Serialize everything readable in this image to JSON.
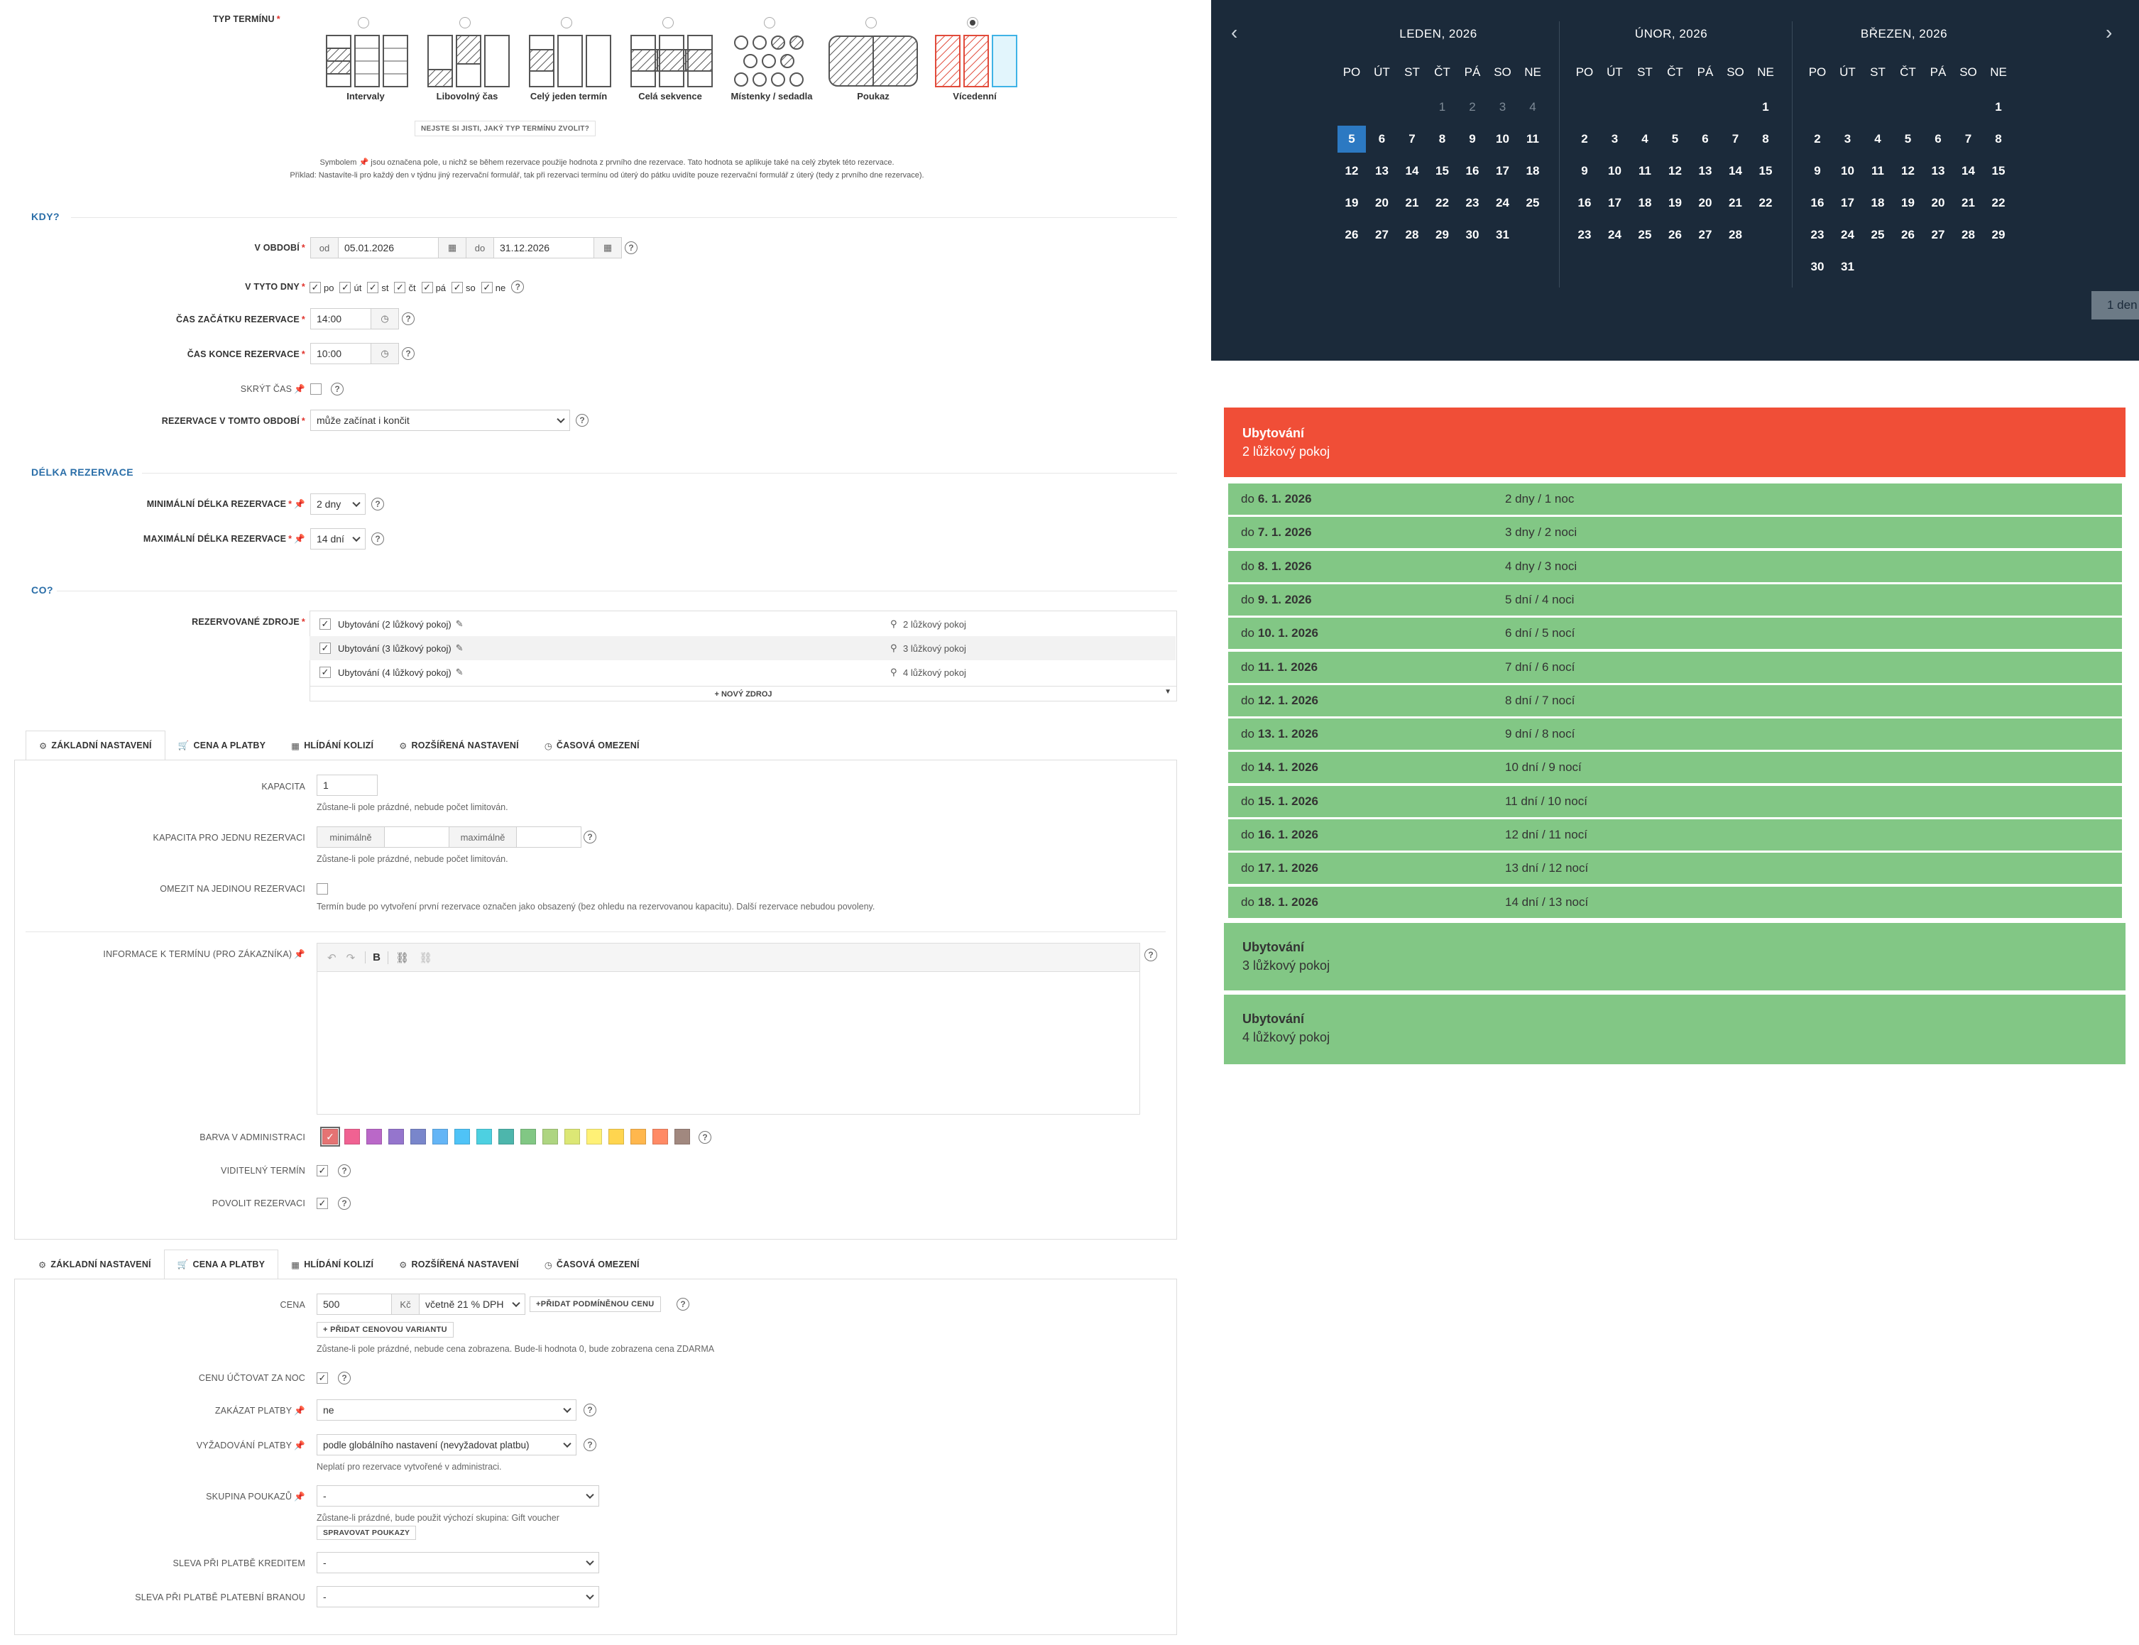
{
  "term_type": {
    "label": "TYP TERMÍNU",
    "options": [
      "Intervaly",
      "Libovolný čas",
      "Celý jeden termín",
      "Celá sekvence",
      "Místenky / sedadla",
      "Poukaz",
      "Vícedenní"
    ],
    "selected": "Vícedenní",
    "unsure_button": "NEJSTE SI JISTI, JAKÝ TYP TERMÍNU ZVOLIT?",
    "note_line1": "Symbolem 📌 jsou označena pole, u nichž se během rezervace použije hodnota z prvního dne rezervace. Tato hodnota se aplikuje také na celý zbytek této rezervace.",
    "note_line2": "Příklad: Nastavíte-li pro každý den v týdnu jiný rezervační formulář, tak při rezervaci termínu od úterý do pátku uvidíte pouze rezervační formulář z úterý (tedy z prvního dne rezervace)."
  },
  "kdy": {
    "section": "KDY?",
    "period_label": "V OBDOBÍ",
    "from_prefix": "od",
    "from_value": "05.01.2026",
    "to_prefix": "do",
    "to_value": "31.12.2026",
    "days_label": "V TYTO DNY",
    "days": [
      "po",
      "út",
      "st",
      "čt",
      "pá",
      "so",
      "ne"
    ],
    "start_label": "ČAS ZAČÁTKU REZERVACE",
    "start_value": "14:00",
    "end_label": "ČAS KONCE REZERVACE",
    "end_value": "10:00",
    "hide_label": "SKRÝT ČAS",
    "period_mode_label": "REZERVACE V TOMTO OBDOBÍ",
    "period_mode_value": "může začínat i končit"
  },
  "delka": {
    "section": "DÉLKA REZERVACE",
    "min_label": "MINIMÁLNÍ DÉLKA REZERVACE",
    "min_value": "2 dny",
    "max_label": "MAXIMÁLNÍ DÉLKA REZERVACE",
    "max_value": "14 dní"
  },
  "co": {
    "section": "CO?",
    "resources_label": "REZERVOVANÉ ZDROJE",
    "resources": [
      {
        "name": "Ubytování (2 lůžkový pokoj)",
        "location": "2 lůžkový pokoj"
      },
      {
        "name": "Ubytování (3 lůžkový pokoj)",
        "location": "3 lůžkový pokoj"
      },
      {
        "name": "Ubytování (4 lůžkový pokoj)",
        "location": "4 lůžkový pokoj"
      }
    ],
    "new_resource": "+ NOVÝ ZDROJ"
  },
  "tabs": [
    "ZÁKLADNÍ NASTAVENÍ",
    "CENA A PLATBY",
    "HLÍDÁNÍ KOLIZÍ",
    "ROZŠÍŘENÁ NASTAVENÍ",
    "ČASOVÁ OMEZENÍ"
  ],
  "basic": {
    "capacity_label": "KAPACITA",
    "capacity_value": "1",
    "capacity_hint": "Zůstane-li pole prázdné, nebude počet limitován.",
    "per_res_label": "KAPACITA PRO JEDNU REZERVACI",
    "min_placeholder": "minimálně",
    "max_placeholder": "maximálně",
    "per_res_hint": "Zůstane-li pole prázdné, nebude počet limitován.",
    "limit_label": "OMEZIT NA JEDINOU REZERVACI",
    "limit_hint": "Termín bude po vytvoření první rezervace označen jako obsazený (bez ohledu na rezervovanou kapacitu). Další rezervace nebudou povoleny.",
    "info_label": "INFORMACE K TERMÍNU (PRO ZÁKAZNÍKA)",
    "color_label": "BARVA V ADMINISTRACI",
    "colors": [
      "#e57373",
      "#f06292",
      "#ba68c8",
      "#9575cd",
      "#7986cb",
      "#64b5f6",
      "#4fc3f7",
      "#4dd0e1",
      "#4db6ac",
      "#81c784",
      "#aed581",
      "#dce775",
      "#fff176",
      "#ffd54f",
      "#ffb74d",
      "#ff8a65",
      "#a1887f"
    ],
    "visible_label": "VIDITELNÝ TERMÍN",
    "allow_label": "POVOLIT REZERVACI"
  },
  "pricing": {
    "price_label": "CENA",
    "price_value": "500",
    "currency": "Kč",
    "vat_value": "včetně 21 % DPH",
    "add_conditional": "+PŘIDAT PODMÍNĚNOU CENU",
    "add_variant": "+ PŘIDAT CENOVOU VARIANTU",
    "price_hint": "Zůstane-li pole prázdné, nebude cena zobrazena. Bude-li hodnota 0, bude zobrazena cena ZDARMA",
    "per_night_label": "CENU ÚČTOVAT ZA NOC",
    "forbid_label": "ZAKÁZAT PLATBY",
    "forbid_value": "ne",
    "require_label": "VYŽADOVÁNÍ PLATBY",
    "require_value": "podle globálního nastavení (nevyžadovat platbu)",
    "require_hint": "Neplatí pro rezervace vytvořené v administraci.",
    "voucher_label": "SKUPINA POUKAZŮ",
    "voucher_value": "-",
    "voucher_hint": "Zůstane-li prázdné, bude použit výchozí skupina: Gift voucher",
    "manage_vouchers": "SPRAVOVAT POUKAZY",
    "credit_label": "SLEVA PŘI PLATBĚ KREDITEM",
    "credit_value": "-",
    "gateway_label": "SLEVA PŘI PLATBĚ PLATEBNÍ BRANOU",
    "gateway_value": "-"
  },
  "calendar": {
    "dow": [
      "PO",
      "ÚT",
      "ST",
      "ČT",
      "PÁ",
      "SO",
      "NE"
    ],
    "months": [
      {
        "title": "LEDEN, 2026",
        "weeks": [
          [
            "",
            "",
            "",
            "1",
            "2",
            "3",
            "4"
          ],
          [
            "5",
            "6",
            "7",
            "8",
            "9",
            "10",
            "11"
          ],
          [
            "12",
            "13",
            "14",
            "15",
            "16",
            "17",
            "18"
          ],
          [
            "19",
            "20",
            "21",
            "22",
            "23",
            "24",
            "25"
          ],
          [
            "26",
            "27",
            "28",
            "29",
            "30",
            "31",
            ""
          ]
        ]
      },
      {
        "title": "ÚNOR, 2026",
        "weeks": [
          [
            "",
            "",
            "",
            "",
            "",
            "",
            "1"
          ],
          [
            "2",
            "3",
            "4",
            "5",
            "6",
            "7",
            "8"
          ],
          [
            "9",
            "10",
            "11",
            "12",
            "13",
            "14",
            "15"
          ],
          [
            "16",
            "17",
            "18",
            "19",
            "20",
            "21",
            "22"
          ],
          [
            "23",
            "24",
            "25",
            "26",
            "27",
            "28",
            ""
          ]
        ]
      },
      {
        "title": "BŘEZEN, 2026",
        "weeks": [
          [
            "",
            "",
            "",
            "",
            "",
            "",
            "1"
          ],
          [
            "2",
            "3",
            "4",
            "5",
            "6",
            "7",
            "8"
          ],
          [
            "9",
            "10",
            "11",
            "12",
            "13",
            "14",
            "15"
          ],
          [
            "16",
            "17",
            "18",
            "19",
            "20",
            "21",
            "22"
          ],
          [
            "23",
            "24",
            "25",
            "26",
            "27",
            "28",
            "29"
          ],
          [
            "30",
            "31",
            "",
            "",
            "",
            "",
            ""
          ]
        ]
      }
    ],
    "duration_value": "1 den"
  },
  "offers": {
    "header_title": "Ubytování",
    "header_sub": "2 lůžkový pokoj",
    "rows": [
      {
        "prefix": "do",
        "date": "6. 1. 2026",
        "nights": "2 dny / 1 noc"
      },
      {
        "prefix": "do",
        "date": "7. 1. 2026",
        "nights": "3 dny / 2 noci"
      },
      {
        "prefix": "do",
        "date": "8. 1. 2026",
        "nights": "4 dny / 3 noci"
      },
      {
        "prefix": "do",
        "date": "9. 1. 2026",
        "nights": "5 dní / 4 noci"
      },
      {
        "prefix": "do",
        "date": "10. 1. 2026",
        "nights": "6 dní / 5 nocí"
      },
      {
        "prefix": "do",
        "date": "11. 1. 2026",
        "nights": "7 dní / 6 nocí"
      },
      {
        "prefix": "do",
        "date": "12. 1. 2026",
        "nights": "8 dní / 7 nocí"
      },
      {
        "prefix": "do",
        "date": "13. 1. 2026",
        "nights": "9 dní / 8 nocí"
      },
      {
        "prefix": "do",
        "date": "14. 1. 2026",
        "nights": "10 dní / 9 nocí"
      },
      {
        "prefix": "do",
        "date": "15. 1. 2026",
        "nights": "11 dní / 10 nocí"
      },
      {
        "prefix": "do",
        "date": "16. 1. 2026",
        "nights": "12 dní / 11 nocí"
      },
      {
        "prefix": "do",
        "date": "17. 1. 2026",
        "nights": "13 dní / 12 nocí"
      },
      {
        "prefix": "do",
        "date": "18. 1. 2026",
        "nights": "14 dní / 13 nocí"
      }
    ],
    "other": [
      {
        "title": "Ubytování",
        "sub": "3 lůžkový pokoj"
      },
      {
        "title": "Ubytování",
        "sub": "4 lůžkový pokoj"
      }
    ]
  },
  "colors": {
    "accent": "#2a6ea8",
    "required": "#e0342d",
    "calendar_bg": "#1b2a3a",
    "selected_day": "#2c79c2",
    "header_red": "#f04e37",
    "offer_green": "#82c785"
  }
}
